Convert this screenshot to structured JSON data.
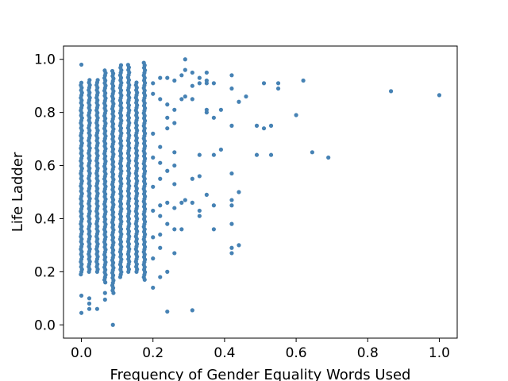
{
  "chart_data": {
    "type": "scatter",
    "title": "",
    "xlabel": "Frequency of Gender Equality Words Used",
    "ylabel": "Life Ladder",
    "xlim": [
      -0.05,
      1.05
    ],
    "ylim": [
      -0.05,
      1.05
    ],
    "xticks": [
      0.0,
      0.2,
      0.4,
      0.6,
      0.8,
      1.0
    ],
    "yticks": [
      0.0,
      0.2,
      0.4,
      0.6,
      0.8,
      1.0
    ],
    "xtick_labels": [
      "0.0",
      "0.2",
      "0.4",
      "0.6",
      "0.8",
      "1.0"
    ],
    "ytick_labels": [
      "0.0",
      "0.2",
      "0.4",
      "0.6",
      "0.8",
      "1.0"
    ],
    "grid": false,
    "legend": "none",
    "marker_color": "#4682b4",
    "dense_columns": [
      {
        "x": 0.0,
        "y_min": 0.19,
        "y_max": 0.92,
        "extra_y": [
          0.98,
          0.11,
          0.045
        ]
      },
      {
        "x": 0.022,
        "y_min": 0.2,
        "y_max": 0.93,
        "extra_y": [
          0.1,
          0.08,
          0.06
        ]
      },
      {
        "x": 0.044,
        "y_min": 0.2,
        "y_max": 0.93,
        "extra_y": [
          0.06
        ]
      },
      {
        "x": 0.066,
        "y_min": 0.16,
        "y_max": 0.96,
        "extra_y": [
          0.12,
          0.095
        ]
      },
      {
        "x": 0.088,
        "y_min": 0.12,
        "y_max": 0.96,
        "extra_y": [
          0.0
        ]
      },
      {
        "x": 0.11,
        "y_min": 0.18,
        "y_max": 0.98,
        "extra_y": []
      },
      {
        "x": 0.132,
        "y_min": 0.2,
        "y_max": 0.98,
        "extra_y": []
      },
      {
        "x": 0.154,
        "y_min": 0.2,
        "y_max": 0.92,
        "extra_y": []
      },
      {
        "x": 0.176,
        "y_min": 0.17,
        "y_max": 0.99,
        "extra_y": []
      }
    ],
    "points": [
      {
        "x": 0.2,
        "y": 0.14
      },
      {
        "x": 0.2,
        "y": 0.25
      },
      {
        "x": 0.2,
        "y": 0.33
      },
      {
        "x": 0.2,
        "y": 0.43
      },
      {
        "x": 0.2,
        "y": 0.52
      },
      {
        "x": 0.2,
        "y": 0.63
      },
      {
        "x": 0.2,
        "y": 0.72
      },
      {
        "x": 0.2,
        "y": 0.87
      },
      {
        "x": 0.2,
        "y": 0.91
      },
      {
        "x": 0.22,
        "y": 0.18
      },
      {
        "x": 0.22,
        "y": 0.29
      },
      {
        "x": 0.22,
        "y": 0.34
      },
      {
        "x": 0.22,
        "y": 0.41
      },
      {
        "x": 0.22,
        "y": 0.45
      },
      {
        "x": 0.22,
        "y": 0.55
      },
      {
        "x": 0.22,
        "y": 0.61
      },
      {
        "x": 0.22,
        "y": 0.67
      },
      {
        "x": 0.22,
        "y": 0.85
      },
      {
        "x": 0.22,
        "y": 0.93
      },
      {
        "x": 0.24,
        "y": 0.05
      },
      {
        "x": 0.24,
        "y": 0.2
      },
      {
        "x": 0.24,
        "y": 0.38
      },
      {
        "x": 0.24,
        "y": 0.46
      },
      {
        "x": 0.24,
        "y": 0.58
      },
      {
        "x": 0.24,
        "y": 0.74
      },
      {
        "x": 0.24,
        "y": 0.78
      },
      {
        "x": 0.24,
        "y": 0.83
      },
      {
        "x": 0.24,
        "y": 0.93
      },
      {
        "x": 0.26,
        "y": 0.27
      },
      {
        "x": 0.26,
        "y": 0.36
      },
      {
        "x": 0.26,
        "y": 0.44
      },
      {
        "x": 0.26,
        "y": 0.53
      },
      {
        "x": 0.26,
        "y": 0.6
      },
      {
        "x": 0.26,
        "y": 0.65
      },
      {
        "x": 0.26,
        "y": 0.76
      },
      {
        "x": 0.26,
        "y": 0.81
      },
      {
        "x": 0.26,
        "y": 0.92
      },
      {
        "x": 0.28,
        "y": 0.36
      },
      {
        "x": 0.28,
        "y": 0.46
      },
      {
        "x": 0.28,
        "y": 0.85
      },
      {
        "x": 0.28,
        "y": 0.94
      },
      {
        "x": 0.29,
        "y": 1.0
      },
      {
        "x": 0.29,
        "y": 0.96
      },
      {
        "x": 0.29,
        "y": 0.86
      },
      {
        "x": 0.29,
        "y": 0.47
      },
      {
        "x": 0.31,
        "y": 0.055
      },
      {
        "x": 0.31,
        "y": 0.46
      },
      {
        "x": 0.31,
        "y": 0.55
      },
      {
        "x": 0.31,
        "y": 0.85
      },
      {
        "x": 0.31,
        "y": 0.9
      },
      {
        "x": 0.31,
        "y": 0.95
      },
      {
        "x": 0.33,
        "y": 0.41
      },
      {
        "x": 0.33,
        "y": 0.43
      },
      {
        "x": 0.33,
        "y": 0.56
      },
      {
        "x": 0.33,
        "y": 0.64
      },
      {
        "x": 0.33,
        "y": 0.91
      },
      {
        "x": 0.33,
        "y": 0.93
      },
      {
        "x": 0.35,
        "y": 0.49
      },
      {
        "x": 0.35,
        "y": 0.8
      },
      {
        "x": 0.35,
        "y": 0.81
      },
      {
        "x": 0.35,
        "y": 0.91
      },
      {
        "x": 0.35,
        "y": 0.92
      },
      {
        "x": 0.35,
        "y": 0.95
      },
      {
        "x": 0.37,
        "y": 0.36
      },
      {
        "x": 0.37,
        "y": 0.45
      },
      {
        "x": 0.37,
        "y": 0.64
      },
      {
        "x": 0.37,
        "y": 0.78
      },
      {
        "x": 0.37,
        "y": 0.91
      },
      {
        "x": 0.39,
        "y": 0.66
      },
      {
        "x": 0.39,
        "y": 0.81
      },
      {
        "x": 0.42,
        "y": 0.27
      },
      {
        "x": 0.42,
        "y": 0.29
      },
      {
        "x": 0.42,
        "y": 0.38
      },
      {
        "x": 0.42,
        "y": 0.45
      },
      {
        "x": 0.42,
        "y": 0.47
      },
      {
        "x": 0.42,
        "y": 0.57
      },
      {
        "x": 0.42,
        "y": 0.75
      },
      {
        "x": 0.42,
        "y": 0.89
      },
      {
        "x": 0.42,
        "y": 0.94
      },
      {
        "x": 0.44,
        "y": 0.3
      },
      {
        "x": 0.44,
        "y": 0.5
      },
      {
        "x": 0.44,
        "y": 0.84
      },
      {
        "x": 0.46,
        "y": 0.86
      },
      {
        "x": 0.49,
        "y": 0.64
      },
      {
        "x": 0.49,
        "y": 0.75
      },
      {
        "x": 0.51,
        "y": 0.74
      },
      {
        "x": 0.51,
        "y": 0.91
      },
      {
        "x": 0.53,
        "y": 0.64
      },
      {
        "x": 0.53,
        "y": 0.75
      },
      {
        "x": 0.55,
        "y": 0.89
      },
      {
        "x": 0.55,
        "y": 0.91
      },
      {
        "x": 0.6,
        "y": 0.79
      },
      {
        "x": 0.62,
        "y": 0.92
      },
      {
        "x": 0.645,
        "y": 0.65
      },
      {
        "x": 0.69,
        "y": 0.63
      },
      {
        "x": 0.865,
        "y": 0.88
      },
      {
        "x": 1.0,
        "y": 0.865
      }
    ]
  }
}
